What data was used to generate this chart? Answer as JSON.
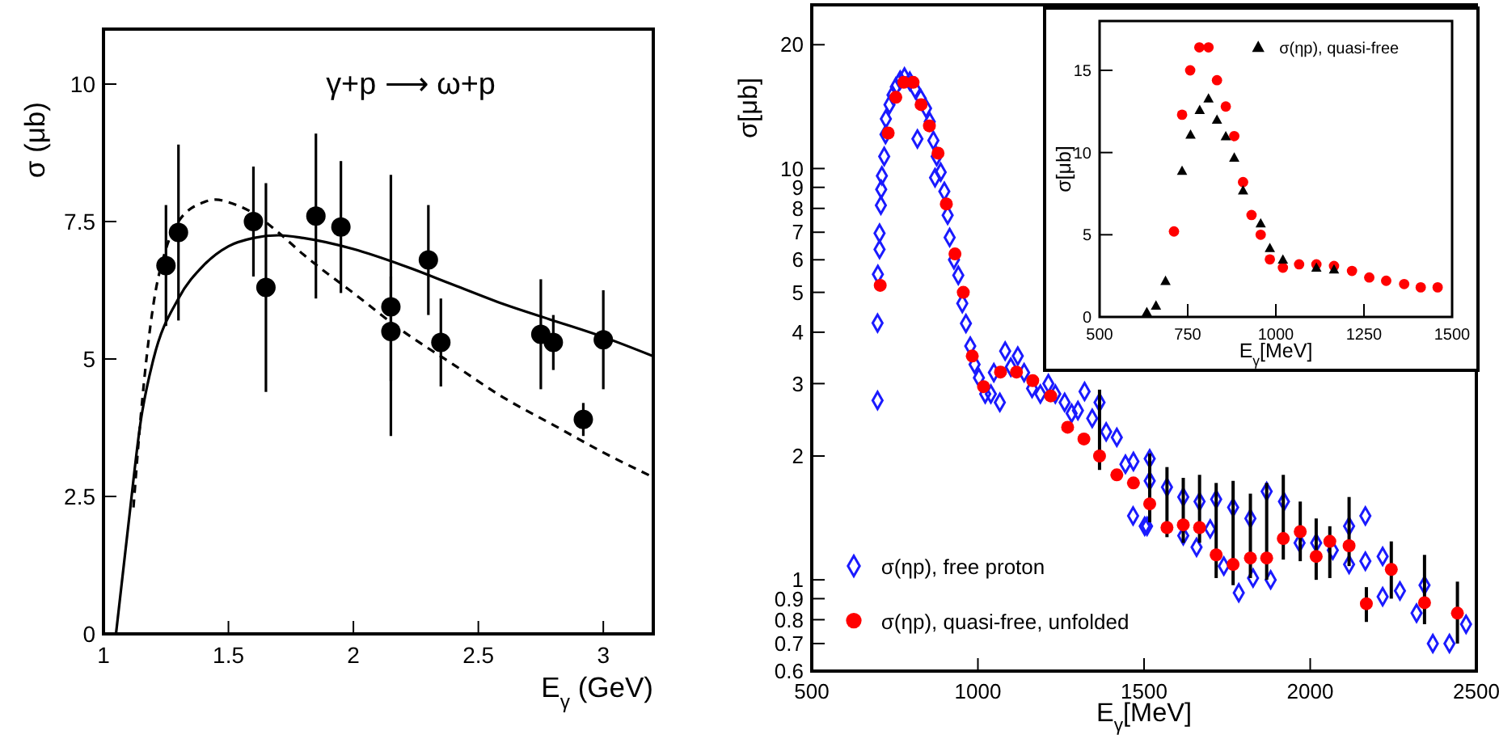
{
  "chart_data": [
    {
      "type": "scatter",
      "xlabel": "E$_{γ}$ (GeV)",
      "ylabel": "σ (μb)",
      "annotations": [
        "γ+p ⟶ ω+p"
      ],
      "xlim": [
        1,
        3.2
      ],
      "ylim": [
        0,
        11
      ],
      "xticks": [
        1,
        1.5,
        2,
        2.5,
        3
      ],
      "yticks": [
        0,
        2.5,
        5,
        7.5,
        10
      ],
      "grid": false,
      "legend": false,
      "series": [
        {
          "type": "scatter",
          "color": "#000000",
          "marker": "circle",
          "x": [
            1.25,
            1.3,
            1.6,
            1.65,
            1.85,
            1.95,
            2.15,
            2.15,
            2.3,
            2.35,
            2.75,
            2.8,
            2.92,
            3.0
          ],
          "values": [
            6.7,
            7.3,
            7.5,
            6.3,
            7.6,
            7.4,
            5.95,
            5.5,
            6.8,
            5.3,
            5.45,
            5.3,
            3.9,
            5.35
          ],
          "errors": [
            1.1,
            1.6,
            1,
            1.9,
            1.5,
            1.2,
            [
              4.6,
              8.35
            ],
            [
              3.6,
              6.5
            ],
            1,
            0.8,
            1,
            0.5,
            0.3,
            0.9
          ]
        },
        {
          "type": "line",
          "color": "#000000",
          "line_style": "solid",
          "x": [
            1.05,
            1.1,
            1.15,
            1.2,
            1.3,
            1.4,
            1.5,
            1.6,
            1.7,
            1.8,
            2.0,
            2.2,
            2.4,
            2.6,
            2.8,
            3.0,
            3.2
          ],
          "values": [
            0,
            2,
            3.9,
            5,
            6.1,
            6.7,
            7.05,
            7.2,
            7.25,
            7.2,
            7.0,
            6.7,
            6.35,
            6.0,
            5.7,
            5.4,
            5.05
          ]
        },
        {
          "type": "line",
          "color": "#000000",
          "line_style": "dashed",
          "x": [
            1.12,
            1.15,
            1.2,
            1.25,
            1.3,
            1.4,
            1.45,
            1.5,
            1.6,
            1.7,
            1.8,
            2.0,
            2.2,
            2.4,
            2.6,
            2.8,
            3.0,
            3.2
          ],
          "values": [
            2.3,
            4,
            6,
            7,
            7.5,
            7.85,
            7.9,
            7.85,
            7.65,
            7.3,
            6.9,
            6.2,
            5.5,
            4.9,
            4.3,
            3.8,
            3.3,
            2.85
          ]
        }
      ]
    },
    {
      "type": "scatter",
      "xlabel": "E$_{γ}$[MeV]",
      "ylabel": "σ[μb]",
      "log": "y",
      "xlim": [
        500,
        2500
      ],
      "ylim": [
        0.6,
        25
      ],
      "xticks": [
        500,
        1000,
        1500,
        2000,
        2500
      ],
      "yticks": [
        0.6,
        0.7,
        0.8,
        0.9,
        1,
        2,
        3,
        4,
        5,
        6,
        7,
        8,
        9,
        10,
        20
      ],
      "grid": false,
      "legend": "bottom left",
      "series": [
        {
          "name": "σ(ηp), free proton",
          "type": "scatter",
          "color": "#1a1aff",
          "marker": "diamond",
          "x": [
            698,
            698,
            699,
            704,
            704,
            708,
            709,
            711,
            718,
            722,
            723,
            734,
            743,
            753,
            766,
            779,
            795,
            811,
            818,
            828,
            844,
            855,
            866,
            876,
            871,
            888,
            899,
            909,
            915,
            928,
            941,
            953,
            964,
            977,
            990,
            1003,
            1022,
            1039,
            1048,
            1066,
            1082,
            1099,
            1120,
            1139,
            1163,
            1188,
            1212,
            1233,
            1261,
            1282,
            1301,
            1321,
            1344,
            1366,
            1386,
            1418,
            1444,
            1467,
            1468,
            1502,
            1509,
            1517,
            1517,
            1569,
            1618,
            1618,
            1658,
            1667,
            1699,
            1717,
            1740,
            1768,
            1785,
            1820,
            1828,
            1869,
            1881,
            1921,
            1968,
            2018,
            2068,
            2117,
            2117,
            2166,
            2166,
            2218,
            2218,
            2270,
            2320,
            2344,
            2369,
            2419,
            2469
          ],
          "values": [
            2.73,
            4.21,
            5.53,
            6.36,
            6.96,
            8.14,
            8.9,
            9.6,
            10.7,
            12.1,
            13.2,
            14.3,
            15.1,
            15.8,
            16.4,
            16.7,
            16.3,
            15.6,
            11.8,
            14.8,
            14.0,
            13.0,
            11.7,
            10.7,
            9.5,
            9.8,
            8.8,
            7.7,
            6.8,
            6.0,
            5.5,
            4.7,
            4.2,
            3.7,
            3.34,
            3.1,
            2.83,
            2.83,
            3.19,
            2.7,
            3.6,
            3.29,
            3.5,
            3.19,
            2.92,
            2.83,
            3.0,
            2.83,
            2.7,
            2.54,
            2.58,
            2.87,
            2.47,
            2.7,
            2.29,
            2.22,
            1.91,
            1.43,
            1.94,
            1.35,
            1.35,
            1.97,
            1.74,
            1.68,
            1.59,
            1.28,
            1.2,
            1.55,
            1.33,
            1.57,
            1.08,
            1.5,
            0.93,
            1.41,
            1.01,
            1.64,
            1.0,
            1.55,
            1.23,
            1.23,
            1.18,
            1.35,
            1.09,
            1.43,
            1.11,
            1.14,
            0.91,
            0.94,
            0.83,
            0.97,
            0.7,
            0.7,
            0.78
          ]
        },
        {
          "name": "σ(ηp), quasi-free, unfolded",
          "type": "scatter",
          "color": "#ff0000",
          "marker": "circle",
          "x": [
            706,
            730,
            753,
            777,
            805,
            829,
            854,
            880,
            905,
            931,
            956,
            983,
            1017,
            1068,
            1116,
            1165,
            1219,
            1270,
            1319,
            1366,
            1418,
            1468,
            1517,
            1569,
            1618,
            1667,
            1717,
            1768,
            1820,
            1869,
            1919,
            1970,
            2018,
            2059,
            2117,
            2169,
            2244,
            2344,
            2443
          ],
          "values": [
            5.2,
            12.2,
            14.9,
            16.2,
            16.2,
            14.3,
            12.7,
            10.9,
            8.2,
            6.2,
            5.0,
            3.5,
            2.95,
            3.2,
            3.2,
            3.05,
            2.8,
            2.35,
            2.2,
            2.0,
            1.8,
            1.72,
            1.53,
            1.34,
            1.36,
            1.34,
            1.15,
            1.09,
            1.13,
            1.13,
            1.26,
            1.31,
            1.14,
            1.24,
            1.21,
            0.875,
            1.06,
            0.88,
            0.83
          ],
          "errors": [
            null,
            null,
            null,
            null,
            null,
            null,
            null,
            null,
            null,
            null,
            null,
            null,
            null,
            null,
            null,
            null,
            null,
            null,
            null,
            [
              1.85,
              2.9
            ],
            null,
            null,
            [
              1.38,
              2.03
            ],
            [
              1.27,
              1.88
            ],
            [
              1.23,
              1.77
            ],
            [
              1.23,
              1.8
            ],
            [
              1.01,
              1.72
            ],
            [
              0.97,
              1.74
            ],
            [
              1.01,
              1.62
            ],
            [
              1.0,
              1.72
            ],
            [
              1.12,
              1.8
            ],
            [
              1.11,
              1.55
            ],
            [
              1.0,
              1.41
            ],
            [
              1.01,
              1.35
            ],
            [
              1.08,
              1.59
            ],
            [
              0.79,
              0.96
            ],
            [
              0.9,
              1.24
            ],
            [
              0.78,
              1.15
            ],
            [
              0.7,
              0.99
            ]
          ]
        }
      ]
    },
    {
      "type": "scatter",
      "xlabel": "E$_{γ}$[MeV]",
      "ylabel": "σ[μb]",
      "xlim": [
        500,
        1500
      ],
      "ylim": [
        0,
        18
      ],
      "xticks": [
        500,
        750,
        1000,
        1250,
        1500
      ],
      "yticks": [
        0,
        5,
        10,
        15
      ],
      "grid": false,
      "legend": "top right",
      "series": [
        {
          "type": "scatter",
          "color": "#ff0000",
          "marker": "circle",
          "x": [
            711,
            734,
            757,
            783,
            809,
            833,
            858,
            882,
            907,
            931,
            957,
            983,
            1020,
            1066,
            1115,
            1165,
            1216,
            1265,
            1313,
            1364,
            1411,
            1459
          ],
          "values": [
            5.2,
            12.3,
            15.0,
            16.4,
            16.4,
            14.4,
            12.8,
            11.0,
            8.2,
            6.2,
            5.0,
            3.5,
            3.0,
            3.2,
            3.2,
            3.1,
            2.8,
            2.4,
            2.2,
            2.0,
            1.8,
            1.8
          ]
        },
        {
          "name": "σ(ηp), quasi-free",
          "type": "scatter",
          "color": "#000000",
          "marker": "triangle",
          "x": [
            634,
            660,
            687,
            734,
            758,
            784,
            809,
            833,
            858,
            882,
            907,
            957,
            983,
            1020,
            1115,
            1165
          ],
          "values": [
            0.3,
            0.7,
            2.2,
            8.9,
            11.1,
            12.6,
            13.3,
            12.0,
            11.0,
            9.7,
            7.7,
            5.7,
            4.2,
            3.5,
            3.0,
            2.9
          ]
        }
      ]
    }
  ]
}
